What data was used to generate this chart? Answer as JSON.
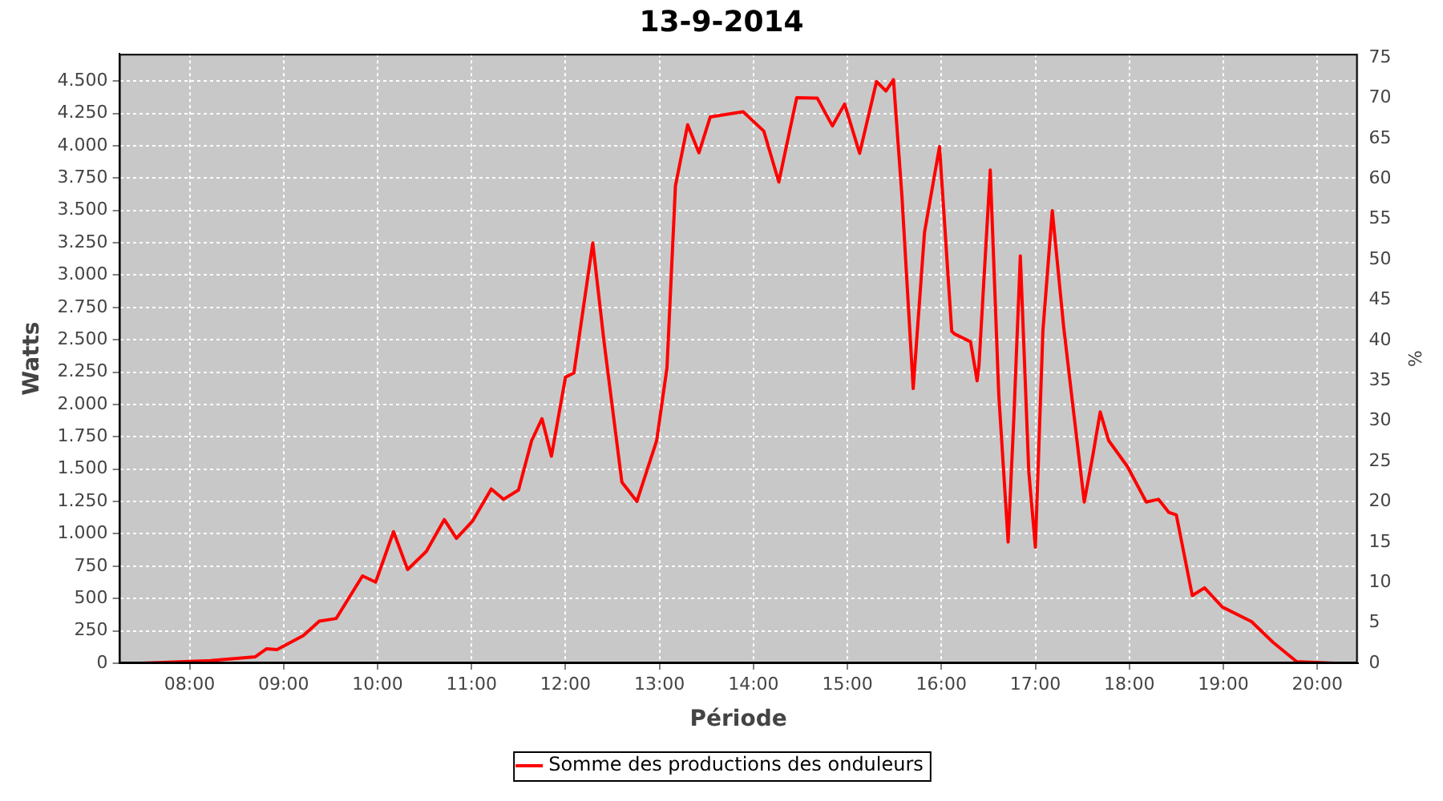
{
  "chart_data": {
    "type": "line",
    "title": "13-9-2014",
    "xlabel": "Période",
    "ylabel": "Watts",
    "y2label": "%",
    "xlim": [
      7.25,
      20.43
    ],
    "xticks": [
      {
        "value": 8,
        "label": "08:00"
      },
      {
        "value": 9,
        "label": "09:00"
      },
      {
        "value": 10,
        "label": "10:00"
      },
      {
        "value": 11,
        "label": "11:00"
      },
      {
        "value": 12,
        "label": "12:00"
      },
      {
        "value": 13,
        "label": "13:00"
      },
      {
        "value": 14,
        "label": "14:00"
      },
      {
        "value": 15,
        "label": "15:00"
      },
      {
        "value": 16,
        "label": "16:00"
      },
      {
        "value": 17,
        "label": "17:00"
      },
      {
        "value": 18,
        "label": "18:00"
      },
      {
        "value": 19,
        "label": "19:00"
      },
      {
        "value": 20,
        "label": "20:00"
      }
    ],
    "ylim": [
      0,
      4710
    ],
    "yticks": [
      0,
      250,
      500,
      750,
      {
        "value": 1000,
        "label": "1.000"
      },
      {
        "value": 1250,
        "label": "1.250"
      },
      {
        "value": 1500,
        "label": "1.500"
      },
      {
        "value": 1750,
        "label": "1.750"
      },
      {
        "value": 2000,
        "label": "2.000"
      },
      {
        "value": 2250,
        "label": "2.250"
      },
      {
        "value": 2500,
        "label": "2.500"
      },
      {
        "value": 2750,
        "label": "2.750"
      },
      {
        "value": 3000,
        "label": "3.000"
      },
      {
        "value": 3250,
        "label": "3.250"
      },
      {
        "value": 3500,
        "label": "3.500"
      },
      {
        "value": 3750,
        "label": "3.750"
      },
      {
        "value": 4000,
        "label": "4.000"
      },
      {
        "value": 4250,
        "label": "4.250"
      },
      {
        "value": 4500,
        "label": "4.500"
      }
    ],
    "y2lim": [
      0,
      75.5
    ],
    "y2ticks": [
      0,
      5,
      10,
      15,
      20,
      25,
      30,
      35,
      40,
      45,
      50,
      55,
      60,
      65,
      70,
      75
    ],
    "grid": true,
    "legend": "bottom",
    "marker": "none",
    "line_style": "solid",
    "series": [
      {
        "name": "Somme des productions des onduleurs",
        "color": "#ff0000",
        "x": [
          7.49,
          8.22,
          8.7,
          8.82,
          8.93,
          9.21,
          9.38,
          9.56,
          9.84,
          9.98,
          10.17,
          10.32,
          10.52,
          10.71,
          10.84,
          11.01,
          11.21,
          11.34,
          11.5,
          11.64,
          11.75,
          11.85,
          12.0,
          12.09,
          12.29,
          12.41,
          12.6,
          12.76,
          12.97,
          13.08,
          13.17,
          13.3,
          13.42,
          13.54,
          13.89,
          14.11,
          14.27,
          14.46,
          14.68,
          14.84,
          14.97,
          15.13,
          15.31,
          15.41,
          15.49,
          15.58,
          15.7,
          15.82,
          15.98,
          16.11,
          16.14,
          16.31,
          16.38,
          16.4,
          16.52,
          16.61,
          16.71,
          16.77,
          16.84,
          16.93,
          17.0,
          17.08,
          17.18,
          17.3,
          17.41,
          17.52,
          17.61,
          17.69,
          17.78,
          17.98,
          18.18,
          18.31,
          18.42,
          18.5,
          18.67,
          18.8,
          18.99,
          19.3,
          19.53,
          19.78,
          20.18
        ],
        "values": [
          0,
          20,
          50,
          112,
          105,
          213,
          325,
          346,
          675,
          627,
          1017,
          724,
          865,
          1110,
          965,
          1098,
          1347,
          1267,
          1339,
          1721,
          1890,
          1600,
          2211,
          2244,
          3249,
          2485,
          1399,
          1251,
          1721,
          2284,
          3691,
          4162,
          3945,
          4222,
          4262,
          4113,
          3719,
          4370,
          4367,
          4153,
          4322,
          3941,
          4496,
          4423,
          4511,
          3611,
          2123,
          3329,
          3993,
          2566,
          2545,
          2485,
          2183,
          2304,
          3812,
          2083,
          937,
          1882,
          3148,
          1480,
          896,
          2566,
          3498,
          2606,
          1922,
          1246,
          1600,
          1942,
          1721,
          1520,
          1246,
          1267,
          1166,
          1146,
          523,
          583,
          434,
          322,
          161,
          12,
          0
        ]
      }
    ]
  }
}
